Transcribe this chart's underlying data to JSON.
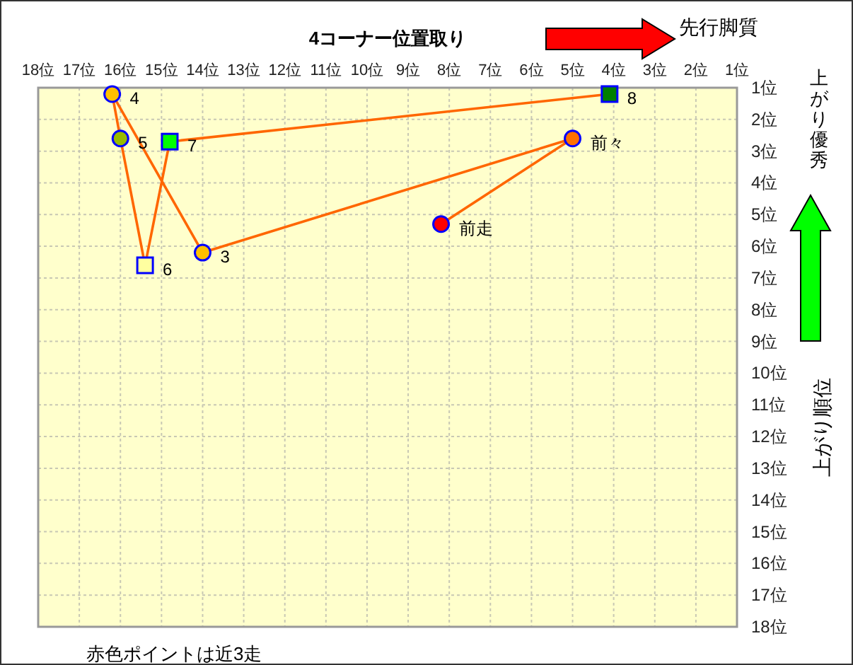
{
  "chart_data": {
    "type": "scatter",
    "xlabel": "4コーナー位置取り",
    "ylabel": "上がり順位",
    "xlim": [
      18,
      1
    ],
    "ylim": [
      18,
      1
    ],
    "xticks": [
      {
        "value": 18,
        "label": "18位"
      },
      {
        "value": 17,
        "label": "17位"
      },
      {
        "value": 16,
        "label": "16位"
      },
      {
        "value": 15,
        "label": "15位"
      },
      {
        "value": 14,
        "label": "14位"
      },
      {
        "value": 13,
        "label": "13位"
      },
      {
        "value": 12,
        "label": "12位"
      },
      {
        "value": 11,
        "label": "11位"
      },
      {
        "value": 10,
        "label": "10位"
      },
      {
        "value": 9,
        "label": "9位"
      },
      {
        "value": 8,
        "label": "8位"
      },
      {
        "value": 7,
        "label": "7位"
      },
      {
        "value": 6,
        "label": "6位"
      },
      {
        "value": 5,
        "label": "5位"
      },
      {
        "value": 4,
        "label": "4位"
      },
      {
        "value": 3,
        "label": "3位"
      },
      {
        "value": 2,
        "label": "2位"
      },
      {
        "value": 1,
        "label": "1位"
      }
    ],
    "yticks": [
      {
        "value": 1,
        "label": "1位"
      },
      {
        "value": 2,
        "label": "2位"
      },
      {
        "value": 3,
        "label": "3位"
      },
      {
        "value": 4,
        "label": "4位"
      },
      {
        "value": 5,
        "label": "5位"
      },
      {
        "value": 6,
        "label": "6位"
      },
      {
        "value": 7,
        "label": "7位"
      },
      {
        "value": 8,
        "label": "8位"
      },
      {
        "value": 9,
        "label": "9位"
      },
      {
        "value": 10,
        "label": "10位"
      },
      {
        "value": 11,
        "label": "11位"
      },
      {
        "value": 12,
        "label": "12位"
      },
      {
        "value": 13,
        "label": "13位"
      },
      {
        "value": 14,
        "label": "14位"
      },
      {
        "value": 15,
        "label": "15位"
      },
      {
        "value": 16,
        "label": "16位"
      },
      {
        "value": 17,
        "label": "17位"
      },
      {
        "value": 18,
        "label": "18位"
      }
    ],
    "grid": true,
    "series": [
      {
        "type": "line",
        "color": "#ff6600",
        "marker": "none",
        "x": [
          8.2,
          5.0,
          14.0,
          16.2,
          16.0,
          15.4,
          14.8,
          4.1
        ],
        "values": [
          5.3,
          2.6,
          6.2,
          1.2,
          2.6,
          6.6,
          2.7,
          1.2
        ]
      },
      {
        "marker": "circle",
        "x": [
          8.2,
          5.0,
          14.0,
          16.2,
          16.0
        ],
        "values": [
          5.3,
          2.6,
          6.2,
          1.2,
          2.6
        ],
        "colors": [
          "#ff0000",
          "#ff7000",
          "#ffc000",
          "#ffc000",
          "#99bb00"
        ]
      },
      {
        "marker": "square",
        "x": [
          15.4,
          14.8,
          4.1
        ],
        "values": [
          6.6,
          2.7,
          1.2
        ],
        "colors": [
          "#ffffa0",
          "#00ff00",
          "#008000"
        ]
      }
    ],
    "annotations": [
      {
        "text": "前走",
        "x": 8.2,
        "y": 5.3
      },
      {
        "text": "前々",
        "x": 5.0,
        "y": 2.6
      },
      {
        "text": "3",
        "x": 14.0,
        "y": 6.2
      },
      {
        "text": "4",
        "x": 16.2,
        "y": 1.2
      },
      {
        "text": "5",
        "x": 16.0,
        "y": 2.6
      },
      {
        "text": "6",
        "x": 15.4,
        "y": 6.6
      },
      {
        "text": "7",
        "x": 14.8,
        "y": 2.7
      },
      {
        "text": "8",
        "x": 4.1,
        "y": 1.2
      },
      "先行脚質",
      "上がり優秀",
      "赤色ポイントは近3走"
    ]
  }
}
